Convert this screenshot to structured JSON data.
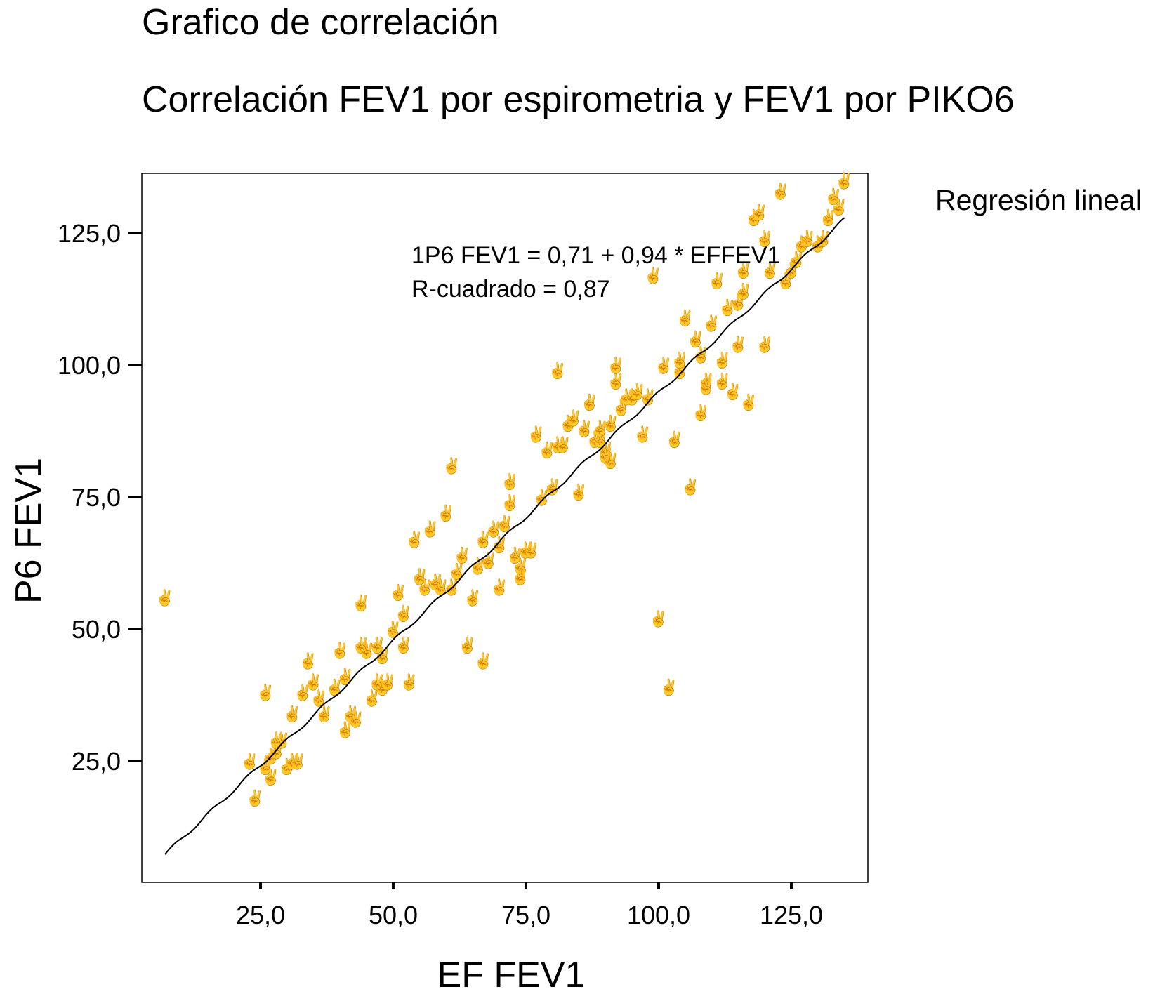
{
  "chart_data": {
    "type": "scatter",
    "title": "Grafico de correlación",
    "subtitle": "Correlación FEV1 por espirometria y FEV1 por PIKO6",
    "xlabel": "EF FEV1",
    "ylabel": "P6 FEV1",
    "xlim": [
      -15,
      140
    ],
    "ylim": [
      0,
      137
    ],
    "xticks": [
      "25,0",
      "50,0",
      "75,0",
      "100,0",
      "125,0"
    ],
    "yticks": [
      "25,0",
      "50,0",
      "75,0",
      "100,0",
      "125,0"
    ],
    "legend": "Regresión lineal",
    "annotation": [
      "1P6 FEV1 = 0,71 + 0,94 * EFFEV1",
      "R-cuadrado = 0,87"
    ],
    "point_color": "#e87a7a",
    "line_color": "#000000",
    "fit": {
      "intercept": 0.71,
      "slope": 0.94,
      "x_range": [
        7,
        135
      ]
    },
    "points": [
      [
        7,
        56
      ],
      [
        23,
        25
      ],
      [
        24,
        18
      ],
      [
        26,
        38
      ],
      [
        26,
        24
      ],
      [
        27,
        26
      ],
      [
        27,
        22
      ],
      [
        28,
        29
      ],
      [
        28,
        27
      ],
      [
        29,
        29
      ],
      [
        30,
        24
      ],
      [
        31,
        25
      ],
      [
        31,
        34
      ],
      [
        32,
        25
      ],
      [
        33,
        38
      ],
      [
        34,
        44
      ],
      [
        35,
        40
      ],
      [
        36,
        37
      ],
      [
        37,
        34
      ],
      [
        39,
        39
      ],
      [
        40,
        46
      ],
      [
        41,
        31
      ],
      [
        41,
        41
      ],
      [
        42,
        34
      ],
      [
        43,
        33
      ],
      [
        44,
        55
      ],
      [
        44,
        47
      ],
      [
        45,
        46
      ],
      [
        46,
        37
      ],
      [
        47,
        47
      ],
      [
        47,
        40
      ],
      [
        48,
        45
      ],
      [
        48,
        39
      ],
      [
        49,
        40
      ],
      [
        50,
        50
      ],
      [
        51,
        57
      ],
      [
        52,
        47
      ],
      [
        52,
        53
      ],
      [
        53,
        40
      ],
      [
        54,
        67
      ],
      [
        55,
        60
      ],
      [
        56,
        58
      ],
      [
        57,
        69
      ],
      [
        58,
        59
      ],
      [
        59,
        58
      ],
      [
        60,
        72
      ],
      [
        61,
        81
      ],
      [
        61,
        58
      ],
      [
        62,
        61
      ],
      [
        63,
        64
      ],
      [
        64,
        47
      ],
      [
        65,
        56
      ],
      [
        66,
        62
      ],
      [
        67,
        67
      ],
      [
        67,
        44
      ],
      [
        68,
        63
      ],
      [
        69,
        69
      ],
      [
        70,
        58
      ],
      [
        70,
        66
      ],
      [
        71,
        70
      ],
      [
        72,
        74
      ],
      [
        72,
        78
      ],
      [
        73,
        64
      ],
      [
        74,
        62
      ],
      [
        74,
        60
      ],
      [
        75,
        65
      ],
      [
        76,
        65
      ],
      [
        77,
        87
      ],
      [
        78,
        75
      ],
      [
        79,
        84
      ],
      [
        80,
        77
      ],
      [
        81,
        85
      ],
      [
        81,
        99
      ],
      [
        82,
        85
      ],
      [
        83,
        89
      ],
      [
        84,
        90
      ],
      [
        85,
        76
      ],
      [
        86,
        88
      ],
      [
        87,
        93
      ],
      [
        88,
        86
      ],
      [
        89,
        86
      ],
      [
        89,
        88
      ],
      [
        90,
        84
      ],
      [
        90,
        83
      ],
      [
        91,
        89
      ],
      [
        91,
        82
      ],
      [
        92,
        97
      ],
      [
        92,
        100
      ],
      [
        93,
        92
      ],
      [
        94,
        94
      ],
      [
        95,
        94
      ],
      [
        96,
        95
      ],
      [
        97,
        87
      ],
      [
        98,
        94
      ],
      [
        99,
        117
      ],
      [
        100,
        52
      ],
      [
        101,
        100
      ],
      [
        102,
        39
      ],
      [
        103,
        86
      ],
      [
        104,
        99
      ],
      [
        104,
        101
      ],
      [
        105,
        109
      ],
      [
        106,
        77
      ],
      [
        107,
        105
      ],
      [
        108,
        91
      ],
      [
        108,
        102
      ],
      [
        109,
        97
      ],
      [
        109,
        96
      ],
      [
        110,
        108
      ],
      [
        111,
        116
      ],
      [
        112,
        101
      ],
      [
        112,
        97
      ],
      [
        113,
        111
      ],
      [
        114,
        95
      ],
      [
        115,
        104
      ],
      [
        115,
        112
      ],
      [
        116,
        114
      ],
      [
        116,
        118
      ],
      [
        117,
        93
      ],
      [
        118,
        128
      ],
      [
        119,
        129
      ],
      [
        120,
        104
      ],
      [
        120,
        124
      ],
      [
        121,
        118
      ],
      [
        123,
        133
      ],
      [
        124,
        116
      ],
      [
        125,
        118
      ],
      [
        126,
        120
      ],
      [
        127,
        123
      ],
      [
        128,
        124
      ],
      [
        130,
        123
      ],
      [
        131,
        124
      ],
      [
        132,
        128
      ],
      [
        133,
        132
      ],
      [
        134,
        130
      ],
      [
        135,
        135
      ]
    ]
  }
}
